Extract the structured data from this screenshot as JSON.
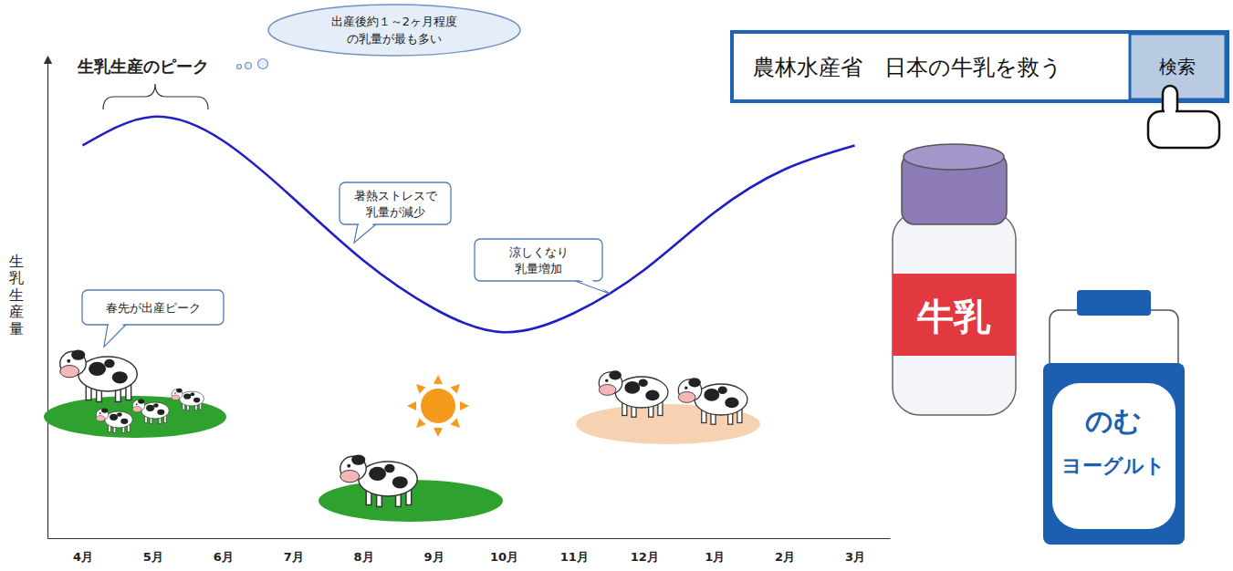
{
  "chart_data": {
    "type": "line",
    "categories": [
      "4月",
      "5月",
      "6月",
      "7月",
      "8月",
      "9月",
      "10月",
      "11月",
      "12月",
      "1月",
      "2月",
      "3月"
    ],
    "values": [
      82,
      88,
      83,
      71,
      58,
      48,
      43,
      47,
      56,
      68,
      77,
      82
    ],
    "color": "#1f1fc8",
    "ylim": [
      0,
      100
    ],
    "grid": false,
    "tick_labels": "x",
    "y_label": "生乳生産量",
    "annotations": {
      "peak_title": "生乳生産のピーク",
      "peak_note": [
        "出産後約１～2ヶ月程度",
        "の乳量が最も多い"
      ],
      "summer_note": [
        "暑熱ストレスで",
        "乳量が減少"
      ],
      "autumn_note": [
        "涼しくなり",
        "乳量増加"
      ],
      "spring_note": "春先が出産ピーク"
    }
  },
  "search": {
    "query": "農林水産省　日本の牛乳を救う",
    "button": "検索"
  },
  "products": {
    "milk": "牛乳",
    "yogurt": [
      "のむ",
      "ヨーグルト"
    ]
  }
}
